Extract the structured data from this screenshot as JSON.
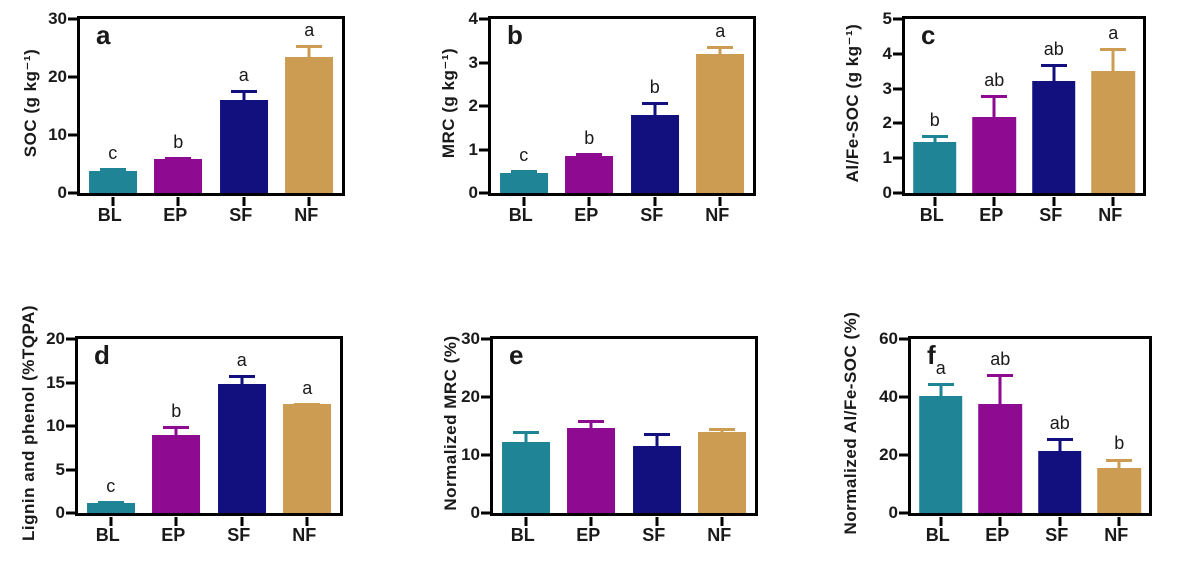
{
  "style": {
    "background": "#ffffff",
    "axis_color": "#000000",
    "bar_colors": {
      "BL": "#1e8496",
      "EP": "#8e0a90",
      "SF": "#12107e",
      "NF": "#cb9c52"
    }
  },
  "chart_data": [
    {
      "type": "bar",
      "panel_label": "a",
      "title": "",
      "xlabel": "",
      "ylabel": "SOC (g kg⁻¹)",
      "categories": [
        "BL",
        "EP",
        "SF",
        "NF"
      ],
      "values": [
        3.8,
        5.9,
        16.0,
        23.4
      ],
      "errors_upper": [
        0.5,
        0.35,
        1.7,
        2.1
      ],
      "sig_letters": [
        "c",
        "b",
        "a",
        "a"
      ],
      "ylim": [
        0,
        30
      ],
      "yticks": [
        0,
        10,
        20,
        30
      ],
      "grid": false,
      "legend": "none"
    },
    {
      "type": "bar",
      "panel_label": "b",
      "title": "",
      "xlabel": "",
      "ylabel": "MRC (g kg⁻¹)",
      "categories": [
        "BL",
        "EP",
        "SF",
        "NF"
      ],
      "values": [
        0.46,
        0.85,
        1.8,
        3.2
      ],
      "errors_upper": [
        0.08,
        0.08,
        0.3,
        0.17
      ],
      "sig_letters": [
        "c",
        "b",
        "b",
        "a"
      ],
      "ylim": [
        0,
        4
      ],
      "yticks": [
        0,
        1,
        2,
        3,
        4
      ],
      "grid": false,
      "legend": "none"
    },
    {
      "type": "bar",
      "panel_label": "c",
      "title": "",
      "xlabel": "",
      "ylabel": "Al/Fe-SOC (g kg⁻¹)",
      "categories": [
        "BL",
        "EP",
        "SF",
        "NF"
      ],
      "values": [
        1.46,
        2.18,
        3.23,
        3.5
      ],
      "errors_upper": [
        0.2,
        0.63,
        0.49,
        0.66
      ],
      "sig_letters": [
        "b",
        "ab",
        "ab",
        "a"
      ],
      "ylim": [
        0,
        5
      ],
      "yticks": [
        0,
        1,
        2,
        3,
        4,
        5
      ],
      "grid": false,
      "legend": "none"
    },
    {
      "type": "bar",
      "panel_label": "d",
      "title": "",
      "xlabel": "",
      "ylabel": "Lignin and phenol (%TQPA)",
      "categories": [
        "BL",
        "EP",
        "SF",
        "NF"
      ],
      "values": [
        1.1,
        9.0,
        14.8,
        12.5
      ],
      "errors_upper": [
        0.3,
        1.0,
        1.1,
        0.2
      ],
      "sig_letters": [
        "c",
        "b",
        "a",
        "a"
      ],
      "ylim": [
        0,
        20
      ],
      "yticks": [
        0,
        5,
        10,
        15,
        20
      ],
      "grid": false,
      "legend": "none"
    },
    {
      "type": "bar",
      "panel_label": "e",
      "title": "",
      "xlabel": "",
      "ylabel": "Normalized MRC (%)",
      "categories": [
        "BL",
        "EP",
        "SF",
        "NF"
      ],
      "values": [
        12.3,
        14.7,
        11.6,
        13.9
      ],
      "errors_upper": [
        1.9,
        1.4,
        2.2,
        0.8
      ],
      "sig_letters": [
        "",
        "",
        "",
        ""
      ],
      "ylim": [
        0,
        30
      ],
      "yticks": [
        0,
        10,
        20,
        30
      ],
      "grid": false,
      "legend": "none"
    },
    {
      "type": "bar",
      "panel_label": "f",
      "title": "",
      "xlabel": "",
      "ylabel": "Normalized Al/Fe-SOC (%)",
      "categories": [
        "BL",
        "EP",
        "SF",
        "NF"
      ],
      "values": [
        40.5,
        37.5,
        21.5,
        15.6
      ],
      "errors_upper": [
        4.3,
        10.5,
        4.4,
        3.2
      ],
      "sig_letters": [
        "a",
        "ab",
        "ab",
        "b"
      ],
      "ylim": [
        0,
        60
      ],
      "yticks": [
        0,
        20,
        40,
        60
      ],
      "grid": false,
      "legend": "none"
    }
  ]
}
